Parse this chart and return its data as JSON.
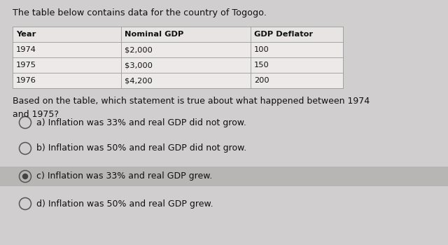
{
  "title": "The table below contains data for the country of Togogo.",
  "table_headers": [
    "Year",
    "Nominal GDP",
    "GDP Deflator"
  ],
  "table_rows": [
    [
      "1974",
      "$2,000",
      "100"
    ],
    [
      "1975",
      "$3,000",
      "150"
    ],
    [
      "1976",
      "$4,200",
      "200"
    ]
  ],
  "question": "Based on the table, which statement is true about what happened between 1974\nand 1975?",
  "options": [
    "a) Inflation was 33% and real GDP did not grow.",
    "b) Inflation was 50% and real GDP did not grow.",
    "c) Inflation was 33% and real GDP grew.",
    "d) Inflation was 50% and real GDP grew."
  ],
  "selected_option": 2,
  "bg_color": "#d0cece",
  "table_bg": "#ede9e9",
  "selected_bg": "#b8b5b5",
  "header_row_bg": "#e8e4e4",
  "text_color": "#111111",
  "border_color": "#999999"
}
